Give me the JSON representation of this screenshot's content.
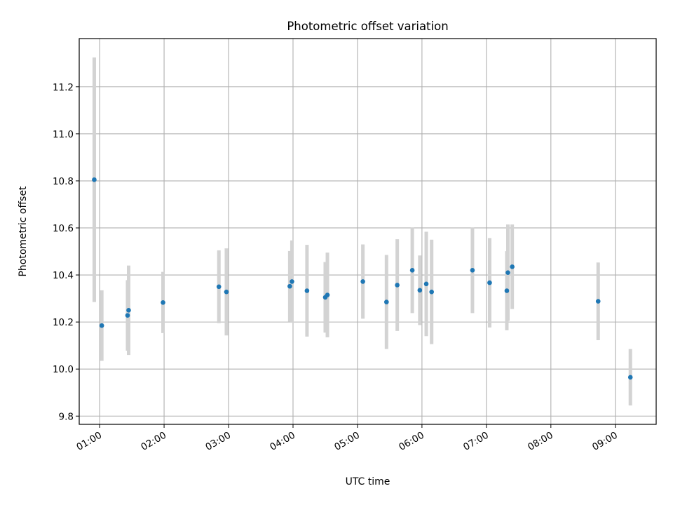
{
  "chart_data": {
    "type": "scatter",
    "title": "Photometric offset variation",
    "xlabel": "UTC time",
    "ylabel": "Photometric offset",
    "x_tick_labels": [
      "01:00",
      "02:00",
      "03:00",
      "04:00",
      "05:00",
      "06:00",
      "07:00",
      "08:00",
      "09:00"
    ],
    "y_tick_labels": [
      "9.8",
      "10.0",
      "10.2",
      "10.4",
      "10.6",
      "10.8",
      "11.0",
      "11.2"
    ],
    "xlim": [
      "00:41",
      "09:38"
    ],
    "ylim": [
      9.765,
      11.405
    ],
    "grid": true,
    "point_color": "#1f77b4",
    "errorbar_color": "#d3d3d3",
    "points": [
      {
        "x": "00:55",
        "y": 10.805,
        "err": 0.52
      },
      {
        "x": "01:02",
        "y": 10.185,
        "err": 0.15
      },
      {
        "x": "01:26",
        "y": 10.228,
        "err": 0.15
      },
      {
        "x": "01:27",
        "y": 10.25,
        "err": 0.19
      },
      {
        "x": "01:59",
        "y": 10.283,
        "err": 0.13
      },
      {
        "x": "02:51",
        "y": 10.35,
        "err": 0.155
      },
      {
        "x": "02:58",
        "y": 10.328,
        "err": 0.185
      },
      {
        "x": "03:57",
        "y": 10.352,
        "err": 0.15
      },
      {
        "x": "03:59",
        "y": 10.372,
        "err": 0.175
      },
      {
        "x": "04:13",
        "y": 10.333,
        "err": 0.195
      },
      {
        "x": "04:30",
        "y": 10.305,
        "err": 0.15
      },
      {
        "x": "04:32",
        "y": 10.315,
        "err": 0.18
      },
      {
        "x": "05:05",
        "y": 10.372,
        "err": 0.158
      },
      {
        "x": "05:27",
        "y": 10.285,
        "err": 0.2
      },
      {
        "x": "05:37",
        "y": 10.357,
        "err": 0.195
      },
      {
        "x": "05:51",
        "y": 10.42,
        "err": 0.182
      },
      {
        "x": "05:58",
        "y": 10.335,
        "err": 0.148
      },
      {
        "x": "06:04",
        "y": 10.362,
        "err": 0.222
      },
      {
        "x": "06:09",
        "y": 10.328,
        "err": 0.222
      },
      {
        "x": "06:47",
        "y": 10.42,
        "err": 0.182
      },
      {
        "x": "07:03",
        "y": 10.367,
        "err": 0.19
      },
      {
        "x": "07:19",
        "y": 10.333,
        "err": 0.168
      },
      {
        "x": "07:20",
        "y": 10.41,
        "err": 0.205
      },
      {
        "x": "07:24",
        "y": 10.435,
        "err": 0.18
      },
      {
        "x": "08:44",
        "y": 10.288,
        "err": 0.165
      },
      {
        "x": "09:14",
        "y": 9.965,
        "err": 0.12
      }
    ]
  }
}
